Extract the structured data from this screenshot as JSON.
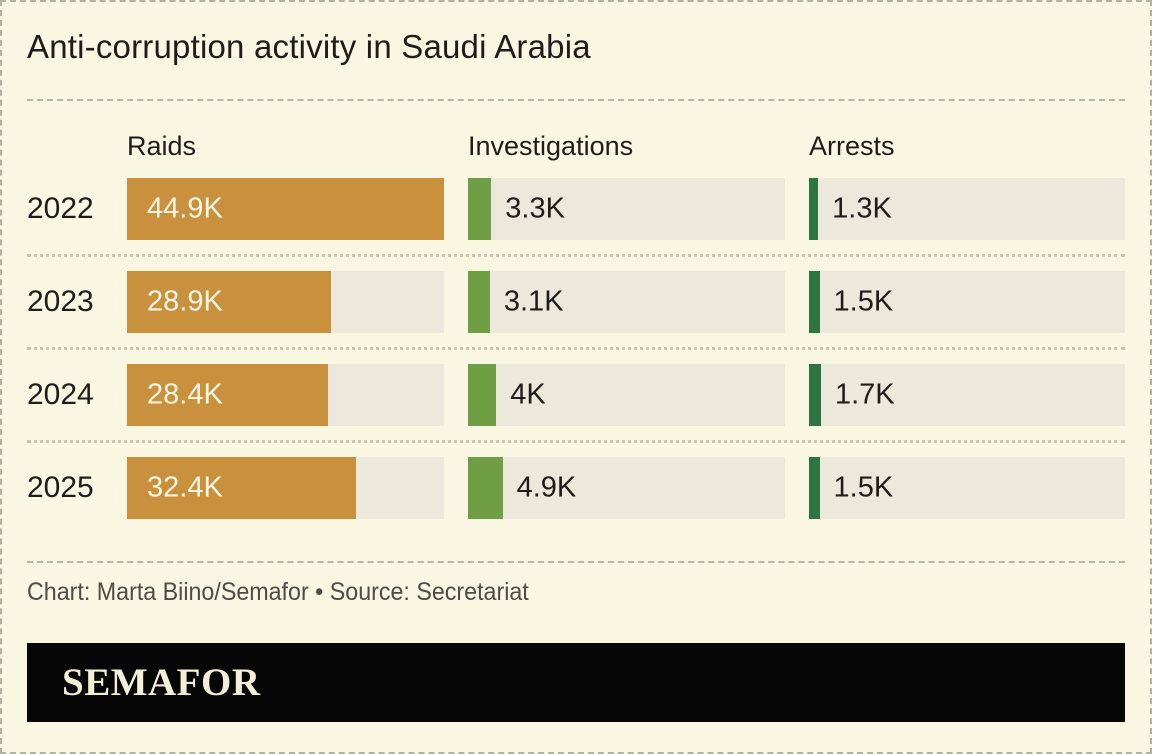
{
  "title": "Anti-corruption activity in Saudi Arabia",
  "caption": "Chart: Marta Biino/Semafor • Source: Secretariat",
  "logo": {
    "wordmark": "SEMAFOR"
  },
  "colors": {
    "background": "#f9f6e1",
    "track": "#ece8db",
    "raids_bar": "#c9913d",
    "investigations_bar": "#6f9e45",
    "arrests_bar": "#2e7342",
    "value_on_bar": "#f8f5e2",
    "text": "#1e1d1b",
    "caption_text": "#4d4c48",
    "logo_bg": "#060606",
    "logo_text": "#f4efd9"
  },
  "chart_data": {
    "type": "bar",
    "orientation": "horizontal",
    "title": "Anti-corruption activity in Saudi Arabia",
    "categories": [
      "2022",
      "2023",
      "2024",
      "2025"
    ],
    "xmax": 44900,
    "grid": false,
    "legend_position": "column-headers",
    "series": [
      {
        "name": "Raids",
        "values": [
          44900,
          28900,
          28400,
          32400
        ],
        "labels": [
          "44.9K",
          "28.9K",
          "28.4K",
          "32.4K"
        ],
        "color": "#c9913d",
        "label_inside": true
      },
      {
        "name": "Investigations",
        "values": [
          3300,
          3100,
          4000,
          4900
        ],
        "labels": [
          "3.3K",
          "3.1K",
          "4K",
          "4.9K"
        ],
        "color": "#6f9e45",
        "label_inside": false
      },
      {
        "name": "Arrests",
        "values": [
          1300,
          1500,
          1700,
          1500
        ],
        "labels": [
          "1.3K",
          "1.5K",
          "1.7K",
          "1.5K"
        ],
        "color": "#2e7342",
        "label_inside": false
      }
    ]
  }
}
